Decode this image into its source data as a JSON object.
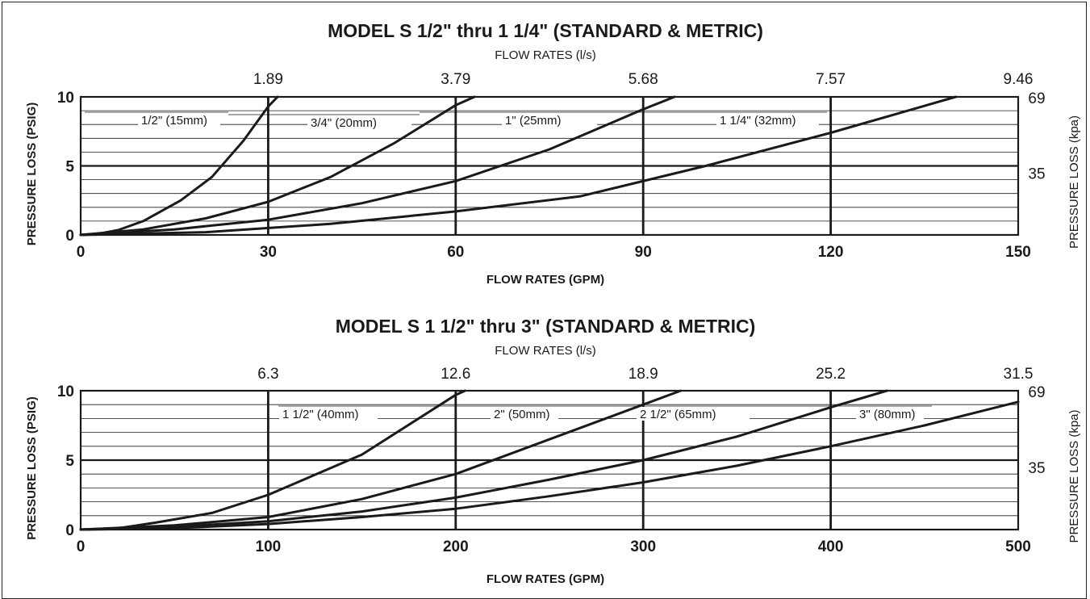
{
  "chart_data": [
    {
      "type": "line",
      "title": "MODEL S  1/2\" thru 1 1/4\"  (STANDARD & METRIC)",
      "top_axis_label": "FLOW RATES (l/s)",
      "top_ticks": [
        "1.89",
        "3.79",
        "5.68",
        "7.57",
        "9.46"
      ],
      "xlabel": "FLOW RATES (GPM)",
      "ylabel": "PRESSURE LOSS (PSIG)",
      "right_axis_label": "PRESSURE LOSS (kpa)",
      "x_ticks": [
        "0",
        "30",
        "60",
        "90",
        "120",
        "150"
      ],
      "y_ticks": [
        "0",
        "5",
        "10"
      ],
      "right_ticks": [
        "35",
        "69"
      ],
      "xlim": [
        0,
        150
      ],
      "ylim": [
        0,
        10
      ],
      "grid": true,
      "series": [
        {
          "name": "1/2\" (15mm)",
          "x": [
            0,
            3,
            6,
            10,
            16,
            21,
            26,
            30,
            31.5
          ],
          "y": [
            0,
            0.1,
            0.35,
            1,
            2.5,
            4.2,
            6.8,
            9.3,
            10
          ]
        },
        {
          "name": "3/4\" (20mm)",
          "x": [
            0,
            10,
            20,
            30,
            40,
            50,
            60,
            63
          ],
          "y": [
            0,
            0.4,
            1.2,
            2.4,
            4.2,
            6.6,
            9.4,
            10
          ]
        },
        {
          "name": "1\" (25mm)",
          "x": [
            0,
            15,
            30,
            45,
            60,
            75,
            90,
            95
          ],
          "y": [
            0,
            0.4,
            1.1,
            2.3,
            3.9,
            6.2,
            9.1,
            10
          ]
        },
        {
          "name": "1 1/4\" (32mm)",
          "x": [
            0,
            20,
            40,
            60,
            80,
            100,
            120,
            140
          ],
          "y": [
            0,
            0.2,
            0.8,
            1.7,
            2.8,
            5,
            7.4,
            10
          ]
        }
      ]
    },
    {
      "type": "line",
      "title": "MODEL S  1 1/2\"  thru 3\" (STANDARD & METRIC)",
      "top_axis_label": "FLOW RATES (l/s)",
      "top_ticks": [
        "6.3",
        "12.6",
        "18.9",
        "25.2",
        "31.5"
      ],
      "xlabel": "FLOW RATES (GPM)",
      "ylabel": "PRESSURE LOSS (PSIG)",
      "right_axis_label": "PRESSURE LOSS (kpa)",
      "x_ticks": [
        "0",
        "100",
        "200",
        "300",
        "400",
        "500"
      ],
      "y_ticks": [
        "0",
        "5",
        "10"
      ],
      "right_ticks": [
        "35",
        "69"
      ],
      "xlim": [
        0,
        500
      ],
      "ylim": [
        0,
        10
      ],
      "grid": true,
      "series": [
        {
          "name": "1 1/2\" (40mm)",
          "x": [
            0,
            20,
            40,
            70,
            100,
            150,
            200,
            205
          ],
          "y": [
            0,
            0.1,
            0.5,
            1.2,
            2.5,
            5.4,
            9.7,
            10
          ]
        },
        {
          "name": "2\" (50mm)",
          "x": [
            0,
            50,
            100,
            150,
            200,
            250,
            300,
            320
          ],
          "y": [
            0,
            0.3,
            0.9,
            2.2,
            4,
            6.5,
            9,
            10
          ]
        },
        {
          "name": "2 1/2\" (65mm)",
          "x": [
            0,
            50,
            100,
            150,
            200,
            250,
            300,
            350,
            400,
            430
          ],
          "y": [
            0,
            0.2,
            0.6,
            1.3,
            2.3,
            3.6,
            5,
            6.7,
            8.8,
            10
          ]
        },
        {
          "name": "3\" (80mm)",
          "x": [
            0,
            50,
            100,
            150,
            200,
            250,
            300,
            350,
            400,
            450,
            500
          ],
          "y": [
            0,
            0.1,
            0.4,
            0.9,
            1.5,
            2.4,
            3.4,
            4.6,
            6,
            7.5,
            9.2
          ]
        }
      ]
    }
  ]
}
